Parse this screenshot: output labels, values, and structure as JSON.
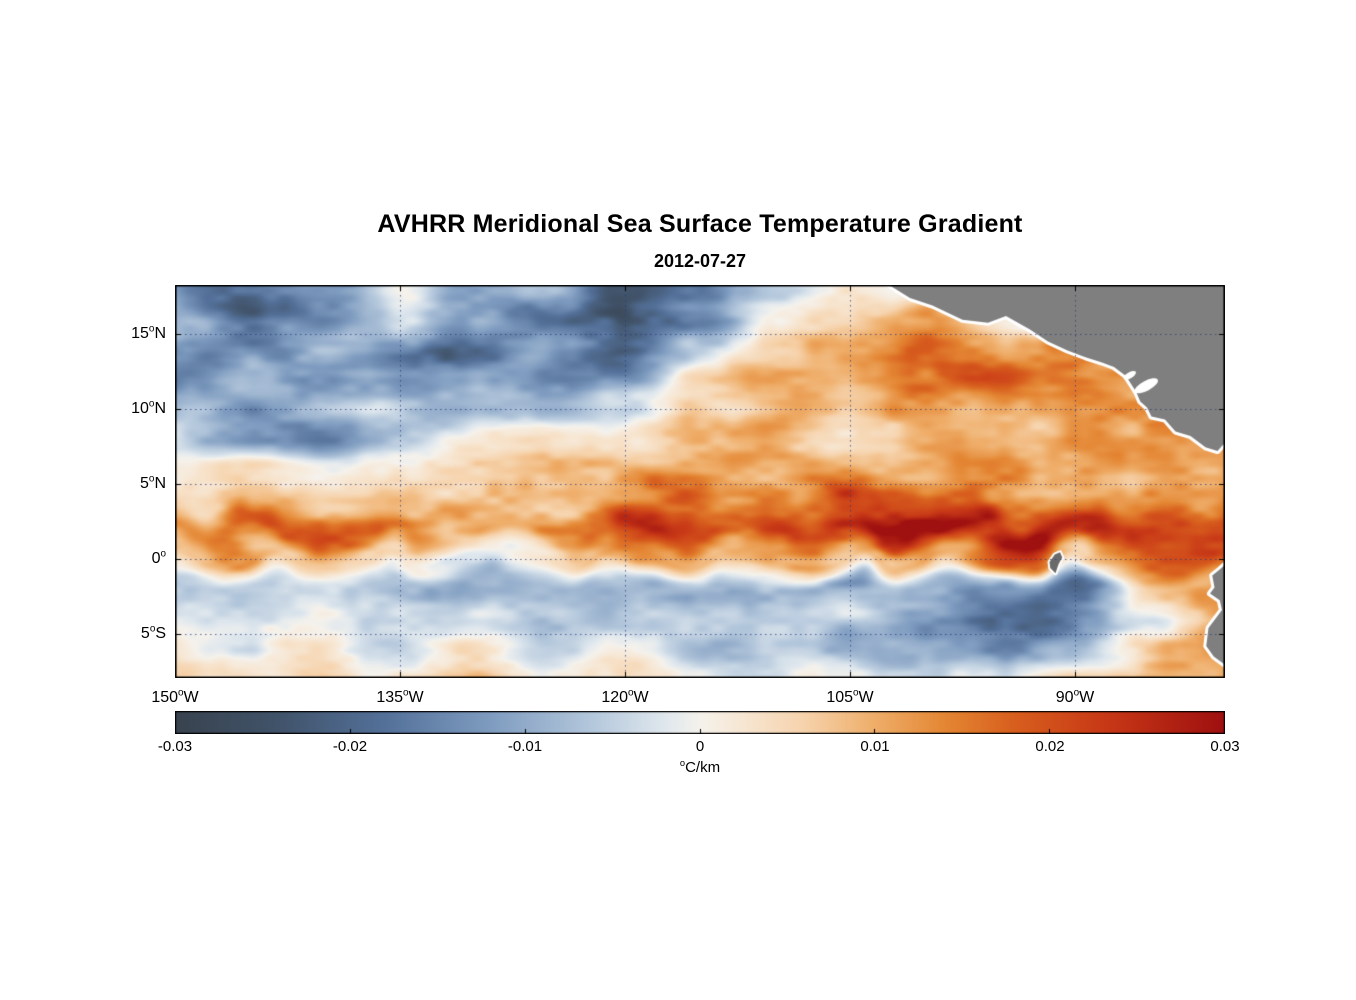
{
  "figure": {
    "title": "AVHRR Meridional Sea Surface Temperature Gradient",
    "date": "2012-07-27"
  },
  "chart_data": {
    "type": "heatmap",
    "title": "AVHRR Meridional Sea Surface Temperature Gradient",
    "subtitle_date": "2012-07-27",
    "degree_mark": "o",
    "x_axis": {
      "range": [
        -150,
        -80
      ],
      "ticks": [
        {
          "num": "150",
          "hemi": "W",
          "value": -150
        },
        {
          "num": "135",
          "hemi": "W",
          "value": -135
        },
        {
          "num": "120",
          "hemi": "W",
          "value": -120
        },
        {
          "num": "105",
          "hemi": "W",
          "value": -105
        },
        {
          "num": "90",
          "hemi": "W",
          "value": -90
        }
      ],
      "gridlines": [
        -135,
        -120,
        -105,
        -90
      ]
    },
    "y_axis": {
      "range": [
        18.27,
        -7.93
      ],
      "ticks": [
        {
          "num": "15",
          "hemi": "N",
          "value": 15
        },
        {
          "num": "10",
          "hemi": "N",
          "value": 10
        },
        {
          "num": "5",
          "hemi": "N",
          "value": 5
        },
        {
          "num": "0",
          "hemi": "",
          "value": 0
        },
        {
          "num": "5",
          "hemi": "S",
          "value": -5
        }
      ],
      "gridlines": [
        15,
        10,
        5,
        0,
        -5
      ]
    },
    "colorbar": {
      "min": -0.03,
      "max": 0.03,
      "ticks": [
        {
          "label": "-0.03",
          "value": -0.03
        },
        {
          "label": "-0.02",
          "value": -0.02
        },
        {
          "label": "-0.01",
          "value": -0.01
        },
        {
          "label": "0",
          "value": 0
        },
        {
          "label": "0.01",
          "value": 0.01
        },
        {
          "label": "0.02",
          "value": 0.02
        },
        {
          "label": "0.03",
          "value": 0.03
        }
      ],
      "unit": {
        "sup": "o",
        "text": "C/km"
      }
    },
    "colormap": [
      [
        -0.03,
        "#39434f"
      ],
      [
        -0.024,
        "#41546b"
      ],
      [
        -0.018,
        "#54719a"
      ],
      [
        -0.012,
        "#7f9cc0"
      ],
      [
        -0.006,
        "#b6c9dd"
      ],
      [
        -0.002,
        "#e0e8ee"
      ],
      [
        0.0,
        "#f5f2ec"
      ],
      [
        0.002,
        "#f7e9d8"
      ],
      [
        0.006,
        "#f6d3ac"
      ],
      [
        0.01,
        "#efae6a"
      ],
      [
        0.014,
        "#e48734"
      ],
      [
        0.018,
        "#d85f1e"
      ],
      [
        0.023,
        "#c93a17"
      ],
      [
        0.03,
        "#9f1010"
      ]
    ],
    "grid": {
      "lons": [
        -150,
        -145,
        -140,
        -135,
        -130,
        -125,
        -120,
        -115,
        -110,
        -105,
        -100,
        -95,
        -90,
        -85,
        -80
      ],
      "lats": [
        18,
        16,
        14,
        12,
        10,
        8,
        6,
        4,
        2,
        0,
        -2,
        -4,
        -6,
        -8
      ],
      "values": [
        [
          -0.01,
          -0.018,
          -0.012,
          0.002,
          -0.01,
          -0.004,
          -0.02,
          -0.022,
          -0.006,
          0.004,
          0.002,
          0.0,
          0.0,
          0.0,
          0.0
        ],
        [
          -0.01,
          -0.022,
          -0.018,
          -0.008,
          -0.015,
          -0.022,
          -0.025,
          -0.012,
          0.003,
          0.008,
          0.01,
          0.006,
          0.0,
          0.0,
          0.0
        ],
        [
          -0.015,
          -0.02,
          -0.01,
          -0.018,
          -0.02,
          -0.01,
          -0.018,
          -0.005,
          0.006,
          0.012,
          0.015,
          0.012,
          0.018,
          0.008,
          0.0
        ],
        [
          -0.015,
          -0.008,
          -0.015,
          -0.012,
          -0.008,
          -0.012,
          -0.01,
          0.004,
          0.008,
          0.01,
          0.015,
          0.018,
          0.02,
          0.012,
          0.006
        ],
        [
          -0.006,
          -0.012,
          -0.01,
          -0.006,
          -0.004,
          -0.008,
          -0.006,
          0.005,
          0.008,
          0.006,
          0.01,
          0.014,
          0.016,
          0.018,
          0.008
        ],
        [
          -0.004,
          -0.01,
          -0.012,
          -0.004,
          0.004,
          0.006,
          0.004,
          0.008,
          0.01,
          0.008,
          0.006,
          0.012,
          0.014,
          0.01,
          0.012
        ],
        [
          0.004,
          0.008,
          0.004,
          0.006,
          0.008,
          0.01,
          0.008,
          0.01,
          0.012,
          0.01,
          0.012,
          0.014,
          0.01,
          0.012,
          0.014
        ],
        [
          0.006,
          0.01,
          0.008,
          0.012,
          0.014,
          0.012,
          0.01,
          0.016,
          0.014,
          0.018,
          0.02,
          0.016,
          0.012,
          0.014,
          0.016
        ],
        [
          0.016,
          0.018,
          0.016,
          0.014,
          0.012,
          0.016,
          0.02,
          0.018,
          0.022,
          0.024,
          0.026,
          0.028,
          0.026,
          0.02,
          0.024
        ],
        [
          0.006,
          0.008,
          0.004,
          0.004,
          0.002,
          0.006,
          0.01,
          0.004,
          0.008,
          0.012,
          0.01,
          0.014,
          0.006,
          0.02,
          0.026
        ],
        [
          -0.006,
          -0.008,
          -0.006,
          -0.008,
          -0.01,
          -0.006,
          -0.008,
          -0.01,
          -0.008,
          -0.012,
          -0.01,
          -0.014,
          -0.02,
          0.004,
          0.01
        ],
        [
          -0.004,
          -0.006,
          -0.002,
          -0.006,
          -0.004,
          -0.008,
          -0.006,
          -0.004,
          -0.006,
          -0.008,
          -0.012,
          -0.018,
          -0.014,
          -0.004,
          0.006
        ],
        [
          0.002,
          -0.004,
          0.004,
          -0.002,
          0.004,
          -0.004,
          0.002,
          -0.006,
          -0.004,
          -0.006,
          -0.008,
          -0.01,
          -0.006,
          0.008,
          0.012
        ],
        [
          0.004,
          0.002,
          0.006,
          0.002,
          0.006,
          0.002,
          0.004,
          0.002,
          -0.002,
          -0.004,
          -0.006,
          -0.004,
          0.004,
          0.01,
          0.014
        ]
      ]
    },
    "land": {
      "fill": "#7f7f7f",
      "island_fill": "#6a6a6a",
      "coast_halo": "#ffffff",
      "polygons": [
        [
          [
            -102.6,
            18.4
          ],
          [
            -101.0,
            17.4
          ],
          [
            -99.5,
            16.9
          ],
          [
            -97.5,
            15.95
          ],
          [
            -95.8,
            15.75
          ],
          [
            -94.6,
            16.2
          ],
          [
            -93.0,
            15.3
          ],
          [
            -91.8,
            14.5
          ],
          [
            -90.5,
            13.9
          ],
          [
            -89.3,
            13.45
          ],
          [
            -88.2,
            13.1
          ],
          [
            -87.4,
            12.8
          ],
          [
            -86.6,
            12.2
          ],
          [
            -85.9,
            11.1
          ],
          [
            -85.65,
            10.5
          ],
          [
            -85.2,
            10.1
          ],
          [
            -84.9,
            9.5
          ],
          [
            -84.0,
            9.3
          ],
          [
            -83.3,
            8.5
          ],
          [
            -82.3,
            8.2
          ],
          [
            -81.3,
            7.45
          ],
          [
            -80.5,
            7.2
          ],
          [
            -80.15,
            7.6
          ],
          [
            -79.8,
            7.8
          ],
          [
            -79.8,
            18.4
          ]
        ],
        [
          [
            -79.8,
            -0.2
          ],
          [
            -80.35,
            -0.7
          ],
          [
            -80.85,
            -1.1
          ],
          [
            -80.7,
            -1.9
          ],
          [
            -81.0,
            -2.3
          ],
          [
            -80.35,
            -2.75
          ],
          [
            -80.2,
            -3.4
          ],
          [
            -81.1,
            -4.6
          ],
          [
            -81.25,
            -5.8
          ],
          [
            -80.75,
            -6.5
          ],
          [
            -79.8,
            -7.2
          ]
        ]
      ],
      "islands": [
        [
          [
            -91.7,
            -0.2
          ],
          [
            -91.35,
            0.3
          ],
          [
            -91.0,
            0.45
          ],
          [
            -90.85,
            0.1
          ],
          [
            -91.1,
            -0.35
          ],
          [
            -91.3,
            -0.95
          ],
          [
            -91.65,
            -0.6
          ]
        ]
      ],
      "lakes": [
        {
          "lon": -85.25,
          "lat": 11.55,
          "rx": 13,
          "ry": 5,
          "rot": -28
        },
        {
          "lon": -86.35,
          "lat": 12.25,
          "rx": 7,
          "ry": 3,
          "rot": -30
        }
      ]
    },
    "gridline_color": "#2a3a7a"
  }
}
